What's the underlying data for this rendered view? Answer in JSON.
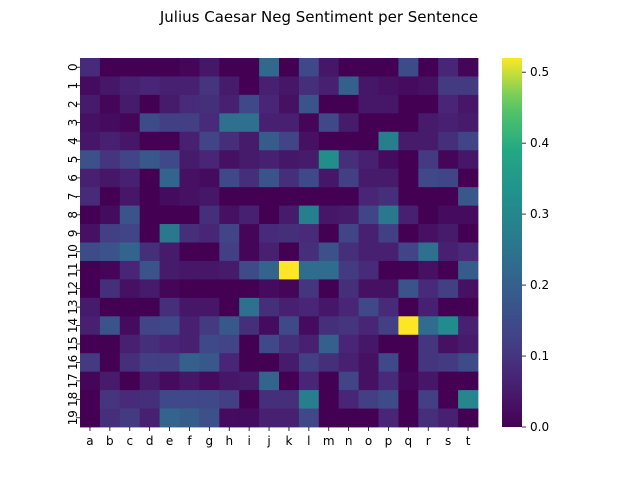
{
  "chart_data": {
    "type": "heatmap",
    "title": "Julius Caesar Neg Sentiment per Sentence",
    "xlabel": "",
    "ylabel": "",
    "x_categories": [
      "a",
      "b",
      "c",
      "d",
      "e",
      "f",
      "g",
      "h",
      "i",
      "j",
      "k",
      "l",
      "m",
      "n",
      "o",
      "p",
      "q",
      "r",
      "s",
      "t"
    ],
    "y_categories": [
      "0",
      "1",
      "2",
      "3",
      "4",
      "5",
      "6",
      "7",
      "8",
      "9",
      "10",
      "11",
      "12",
      "13",
      "14",
      "15",
      "16",
      "17",
      "18",
      "19"
    ],
    "colormap": "viridis",
    "vmin": 0.0,
    "vmax": 0.52,
    "colorbar_ticks": [
      "0.0",
      "0.1",
      "0.2",
      "0.3",
      "0.4",
      "0.5"
    ],
    "colorbar_tick_values": [
      0.0,
      0.1,
      0.2,
      0.3,
      0.4,
      0.5
    ],
    "values": [
      [
        0.08,
        0.0,
        0.0,
        0.0,
        0.0,
        0.01,
        0.04,
        0.0,
        0.0,
        0.22,
        0.0,
        0.14,
        0.04,
        0.0,
        0.0,
        0.0,
        0.15,
        0.0,
        0.07,
        0.01
      ],
      [
        0.02,
        0.04,
        0.06,
        0.07,
        0.06,
        0.06,
        0.1,
        0.05,
        0.0,
        0.06,
        0.04,
        0.09,
        0.06,
        0.2,
        0.04,
        0.03,
        0.02,
        0.03,
        0.11,
        0.11
      ],
      [
        0.05,
        0.01,
        0.05,
        0.0,
        0.05,
        0.08,
        0.09,
        0.06,
        0.14,
        0.07,
        0.03,
        0.17,
        0.0,
        0.0,
        0.04,
        0.04,
        0.0,
        0.0,
        0.07,
        0.04
      ],
      [
        0.03,
        0.02,
        0.01,
        0.15,
        0.12,
        0.12,
        0.08,
        0.24,
        0.24,
        0.06,
        0.06,
        0.01,
        0.14,
        0.05,
        0.0,
        0.0,
        0.0,
        0.05,
        0.06,
        0.05
      ],
      [
        0.04,
        0.06,
        0.04,
        0.0,
        0.0,
        0.06,
        0.13,
        0.09,
        0.05,
        0.19,
        0.13,
        0.03,
        0.0,
        0.0,
        0.0,
        0.28,
        0.05,
        0.05,
        0.09,
        0.13
      ],
      [
        0.16,
        0.1,
        0.13,
        0.18,
        0.14,
        0.05,
        0.07,
        0.03,
        0.05,
        0.06,
        0.04,
        0.05,
        0.32,
        0.09,
        0.06,
        0.02,
        0.0,
        0.11,
        0.01,
        0.04
      ],
      [
        0.06,
        0.04,
        0.06,
        0.0,
        0.21,
        0.03,
        0.02,
        0.14,
        0.09,
        0.17,
        0.09,
        0.14,
        0.04,
        0.12,
        0.05,
        0.05,
        0.0,
        0.14,
        0.13,
        0.0
      ],
      [
        0.08,
        0.0,
        0.04,
        0.0,
        0.02,
        0.03,
        0.04,
        0.0,
        0.0,
        0.0,
        0.0,
        0.0,
        0.0,
        0.0,
        0.07,
        0.09,
        0.0,
        0.0,
        0.0,
        0.18
      ],
      [
        0.0,
        0.02,
        0.17,
        0.0,
        0.0,
        0.0,
        0.09,
        0.03,
        0.06,
        0.0,
        0.05,
        0.28,
        0.04,
        0.05,
        0.13,
        0.26,
        0.06,
        0.0,
        0.02,
        0.02
      ],
      [
        0.03,
        0.12,
        0.13,
        0.0,
        0.26,
        0.09,
        0.07,
        0.13,
        0.01,
        0.08,
        0.09,
        0.08,
        0.0,
        0.13,
        0.06,
        0.12,
        0.0,
        0.03,
        0.05,
        0.0
      ],
      [
        0.15,
        0.17,
        0.21,
        0.09,
        0.05,
        0.0,
        0.0,
        0.12,
        0.01,
        0.06,
        0.0,
        0.09,
        0.16,
        0.09,
        0.06,
        0.06,
        0.13,
        0.24,
        0.06,
        0.08
      ],
      [
        0.0,
        0.01,
        0.07,
        0.17,
        0.05,
        0.04,
        0.04,
        0.05,
        0.15,
        0.21,
        0.52,
        0.23,
        0.23,
        0.11,
        0.08,
        0.0,
        0.0,
        0.03,
        0.0,
        0.19
      ],
      [
        0.0,
        0.09,
        0.03,
        0.05,
        0.01,
        0.0,
        0.0,
        0.0,
        0.0,
        0.02,
        0.01,
        0.1,
        0.0,
        0.09,
        0.03,
        0.03,
        0.17,
        0.08,
        0.12,
        0.03
      ],
      [
        0.05,
        0.0,
        0.0,
        0.0,
        0.09,
        0.04,
        0.04,
        0.0,
        0.24,
        0.09,
        0.06,
        0.07,
        0.04,
        0.07,
        0.14,
        0.08,
        0.0,
        0.06,
        0.0,
        0.0
      ],
      [
        0.06,
        0.17,
        0.02,
        0.13,
        0.14,
        0.06,
        0.11,
        0.18,
        0.09,
        0.02,
        0.14,
        0.02,
        0.09,
        0.1,
        0.07,
        0.12,
        0.52,
        0.23,
        0.31,
        0.06
      ],
      [
        0.0,
        0.0,
        0.06,
        0.09,
        0.07,
        0.06,
        0.14,
        0.13,
        0.0,
        0.14,
        0.09,
        0.06,
        0.2,
        0.07,
        0.04,
        0.0,
        0.0,
        0.1,
        0.03,
        0.05
      ],
      [
        0.11,
        0.0,
        0.09,
        0.12,
        0.12,
        0.2,
        0.18,
        0.07,
        0.0,
        0.0,
        0.05,
        0.12,
        0.09,
        0.06,
        0.03,
        0.14,
        0.0,
        0.1,
        0.11,
        0.15
      ],
      [
        0.01,
        0.05,
        0.0,
        0.05,
        0.02,
        0.04,
        0.02,
        0.04,
        0.05,
        0.21,
        0.0,
        0.07,
        0.0,
        0.13,
        0.03,
        0.08,
        0.01,
        0.04,
        0.0,
        0.0
      ],
      [
        0.0,
        0.1,
        0.08,
        0.09,
        0.14,
        0.14,
        0.14,
        0.12,
        0.0,
        0.09,
        0.09,
        0.28,
        0.0,
        0.07,
        0.12,
        0.15,
        0.0,
        0.12,
        0.0,
        0.3
      ],
      [
        0.0,
        0.09,
        0.11,
        0.06,
        0.21,
        0.19,
        0.16,
        0.02,
        0.02,
        0.06,
        0.06,
        0.14,
        0.0,
        0.0,
        0.0,
        0.07,
        0.0,
        0.09,
        0.06,
        0.0
      ]
    ]
  }
}
